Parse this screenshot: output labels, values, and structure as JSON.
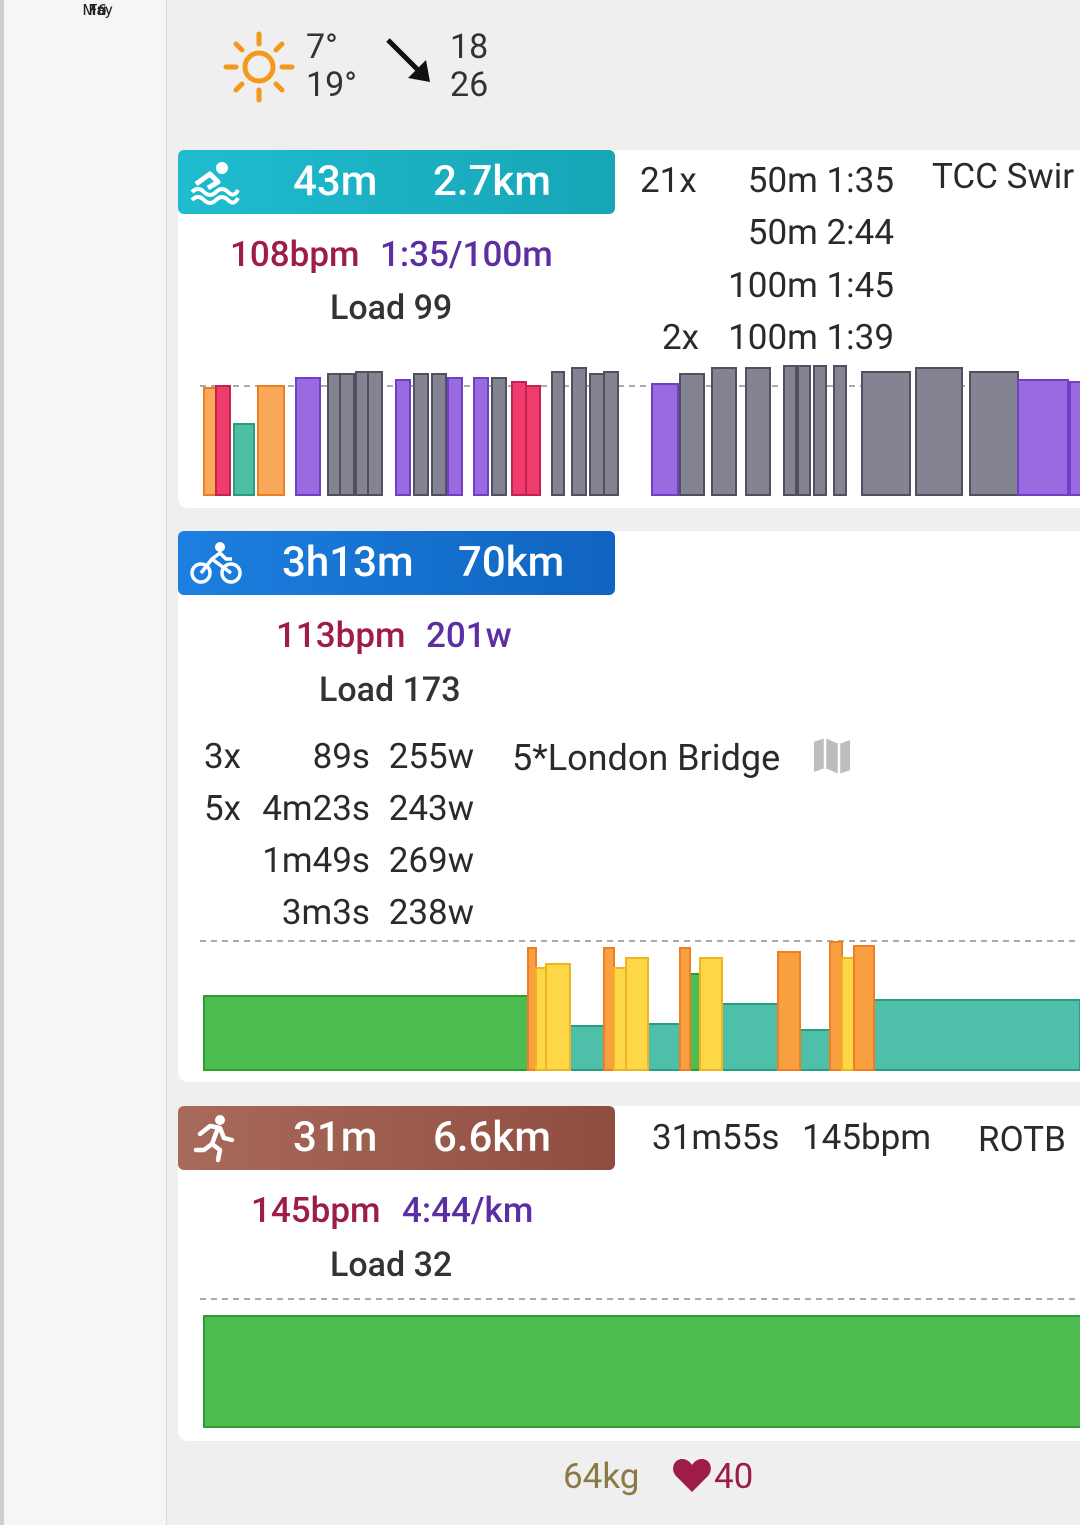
{
  "weather": {
    "icon": "sun-icon",
    "temp_low": "7°",
    "temp_high": "19°",
    "wind_icon": "wind-arrow-icon",
    "wind_low": "18",
    "wind_high": "26"
  },
  "date": {
    "weekday": "Fri",
    "day": "16",
    "month": "May"
  },
  "swim": {
    "icon": "swim-icon",
    "duration": "43m",
    "distance": "2.7km",
    "color": "#20b3c6",
    "hr": "108bpm",
    "pace": "1:35/100m",
    "load": "Load 99",
    "title": "TCC Swir",
    "intervals": [
      {
        "count": "21x",
        "detail": "50m 1:35"
      },
      {
        "count": "",
        "detail": "50m 2:44"
      },
      {
        "count": "",
        "detail": "100m 1:45"
      },
      {
        "count": "2x",
        "detail": "100m 1:39"
      }
    ]
  },
  "ride": {
    "icon": "bike-icon",
    "duration": "3h13m",
    "distance": "70km",
    "color": "#1a73d4",
    "hr": "113bpm",
    "power": "201w",
    "load": "Load 173",
    "title": "5*London Bridge",
    "map_icon": "map-icon",
    "intervals": [
      {
        "count": "3x",
        "time": "89s",
        "watts": "255w"
      },
      {
        "count": "5x",
        "time": "4m23s",
        "watts": "243w"
      },
      {
        "count": "",
        "time": "1m49s",
        "watts": "269w"
      },
      {
        "count": "",
        "time": "3m3s",
        "watts": "238w"
      }
    ]
  },
  "run": {
    "icon": "run-icon",
    "duration": "31m",
    "distance": "6.6km",
    "color": "#9e5a4c",
    "hr": "145bpm",
    "pace": "4:44/km",
    "load": "Load 32",
    "interval_time": "31m55s",
    "interval_hr": "145bpm",
    "title": "ROTB"
  },
  "footer": {
    "weight": "64kg",
    "heart_icon": "heart-icon",
    "resting_hr": "40"
  }
}
